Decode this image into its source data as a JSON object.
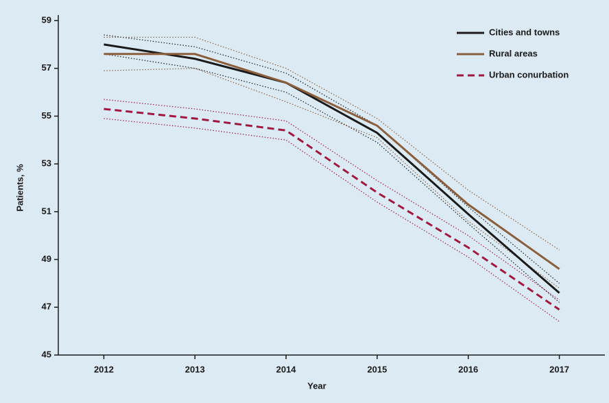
{
  "chart_data": {
    "type": "line",
    "x_label": "Year",
    "y_label": "Patients, %",
    "categories": [
      "2012",
      "2013",
      "2014",
      "2015",
      "2016",
      "2017"
    ],
    "ylim": [
      45,
      59
    ],
    "yticks": [
      45,
      47,
      49,
      51,
      53,
      55,
      57,
      59
    ],
    "legend": "top-right",
    "series": [
      {
        "name": "Cities and towns",
        "color": "#1a1a1a",
        "dash": false,
        "values": [
          58.0,
          57.4,
          56.4,
          54.3,
          50.9,
          47.6
        ],
        "ci_upper": [
          58.4,
          57.9,
          56.8,
          54.6,
          51.2,
          48.0
        ],
        "ci_lower": [
          57.6,
          57.0,
          56.0,
          53.9,
          50.5,
          47.2
        ]
      },
      {
        "name": "Rural areas",
        "color": "#8b5e3c",
        "dash": false,
        "values": [
          57.6,
          57.6,
          56.4,
          54.6,
          51.3,
          48.6
        ],
        "ci_upper": [
          58.3,
          58.3,
          57.0,
          54.9,
          51.9,
          49.4
        ],
        "ci_lower": [
          56.9,
          57.0,
          55.6,
          54.1,
          50.6,
          47.8
        ]
      },
      {
        "name": "Urban conurbation",
        "color": "#a0173f",
        "dash": true,
        "values": [
          55.3,
          54.9,
          54.4,
          51.8,
          49.5,
          46.9
        ],
        "ci_upper": [
          55.7,
          55.3,
          54.8,
          52.3,
          50.0,
          47.3
        ],
        "ci_lower": [
          54.9,
          54.5,
          54.0,
          51.4,
          49.1,
          46.4
        ]
      }
    ]
  }
}
